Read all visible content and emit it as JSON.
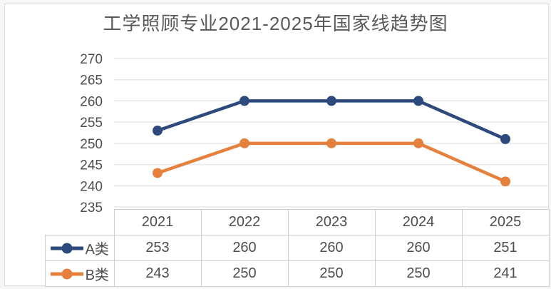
{
  "title": "工学照顾专业2021-2025年国家线趋势图",
  "colors": {
    "series_a": "#2E4A7D",
    "series_b": "#E5813C",
    "grid": "#e7e7e7",
    "card_border": "#d9d9d9",
    "table_border": "#cfcfcf",
    "text": "#4d4d4d",
    "title_text": "#595959",
    "card_bg": "#ffffff",
    "page_bg": "#f6f6f6"
  },
  "chart_data": {
    "type": "line",
    "title": "工学照顾专业2021-2025年国家线趋势图",
    "categories": [
      "2021",
      "2022",
      "2023",
      "2024",
      "2025"
    ],
    "series": [
      {
        "name": "A类",
        "values": [
          253,
          260,
          260,
          260,
          251
        ],
        "color": "#2E4A7D"
      },
      {
        "name": "B类",
        "values": [
          243,
          250,
          250,
          250,
          241
        ],
        "color": "#E5813C"
      }
    ],
    "xlabel": "",
    "ylabel": "",
    "ylim": [
      235,
      270
    ],
    "yticks": [
      270,
      265,
      260,
      255,
      250,
      245,
      240,
      235
    ],
    "grid": true,
    "marker": "circle",
    "legend_position": "table-left"
  }
}
